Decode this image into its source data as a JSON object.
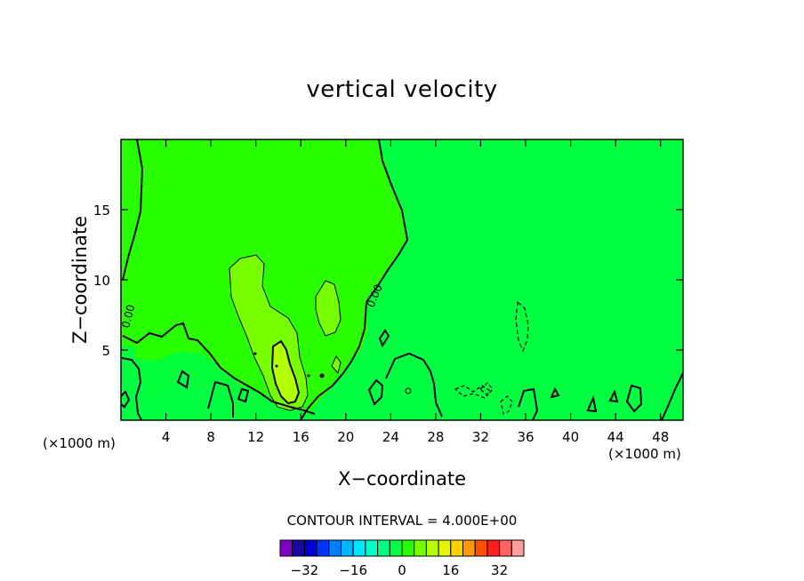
{
  "chart_data": {
    "type": "heatmap",
    "title": "vertical velocity",
    "xlabel": "X−coordinate",
    "ylabel": "Z−coordinate",
    "x_unit_label": "(×1000 m)",
    "z_unit_label": "(×1000 m)",
    "xlim": [
      0,
      50
    ],
    "ylim": [
      0,
      20
    ],
    "x_ticks": [
      4,
      8,
      12,
      16,
      20,
      24,
      28,
      32,
      36,
      40,
      44,
      48
    ],
    "y_ticks": [
      5,
      10,
      15
    ],
    "contour_interval_text": "CONTOUR INTERVAL = 4.000E+00",
    "contour_labels": [
      "0.00",
      "0.00"
    ],
    "background_fields": [
      {
        "value": 4,
        "region": "left upper domain, x 0-23"
      },
      {
        "value": 0,
        "region": "right domain, x 23-50"
      }
    ],
    "features": [
      {
        "name": "updraft core",
        "x_center": 14.5,
        "z_center": 3.5,
        "max_value": 12
      },
      {
        "name": "secondary updraft",
        "x_center": 18.2,
        "z_center": 7.8,
        "max_value": 8
      },
      {
        "name": "weak downdraft",
        "x_center": 35.5,
        "z_center": 6.8,
        "max_value": -4
      }
    ],
    "colorbar": {
      "levels": [
        -36,
        -32,
        -28,
        -24,
        -20,
        -16,
        -12,
        -8,
        -4,
        0,
        4,
        8,
        12,
        16,
        20,
        24,
        28,
        32,
        36
      ],
      "colors": [
        "#7f00bf",
        "#1a0aa0",
        "#0000d0",
        "#0033ff",
        "#0080ff",
        "#00b4ff",
        "#00e6ff",
        "#00ffc8",
        "#00ff80",
        "#00ff40",
        "#29ff00",
        "#77ff00",
        "#b4ff00",
        "#e6f500",
        "#ffd200",
        "#ff9600",
        "#ff5000",
        "#ff1e1e",
        "#ff6464",
        "#ff9f9f"
      ],
      "tick_labels": [
        "−32",
        "−16",
        "0",
        "16",
        "32"
      ],
      "tick_values": [
        -32,
        -16,
        0,
        16,
        32
      ]
    }
  }
}
